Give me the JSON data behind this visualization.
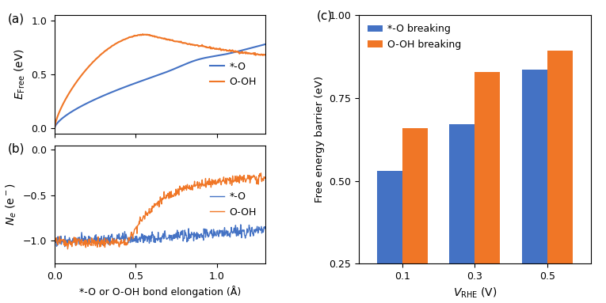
{
  "blue_color": "#4472C4",
  "orange_color": "#F07626",
  "panel_a": {
    "title": "(a)",
    "xlabel": "*-O or O-OH bond elongation (Å)",
    "ylabel": "$E_{\\mathrm{Free}}$ (eV)",
    "xlim": [
      0.0,
      1.3
    ],
    "ylim": [
      -0.05,
      1.05
    ],
    "yticks": [
      0.0,
      0.5,
      1.0
    ],
    "xticks": [
      0.0,
      0.5,
      1.0
    ],
    "legend_labels": [
      "*-O",
      "O-OH"
    ]
  },
  "panel_b": {
    "title": "(b)",
    "xlabel": "*-O or O-OH bond elongation (Å)",
    "ylabel": "$N_e$ (e$^-$)",
    "xlim": [
      0.0,
      1.3
    ],
    "ylim": [
      -1.25,
      0.05
    ],
    "yticks": [
      0.0,
      -0.5,
      -1.0
    ],
    "xticks": [
      0.0,
      0.5,
      1.0
    ],
    "legend_labels": [
      "*-O",
      "O-OH"
    ]
  },
  "panel_c": {
    "title": "(c)",
    "xlabel": "$V_{\\mathrm{RHE}}$ (V)",
    "ylabel": "Free energy barrier (eV)",
    "categories": [
      "0.1",
      "0.3",
      "0.5"
    ],
    "blue_values": [
      0.53,
      0.67,
      0.835
    ],
    "orange_values": [
      0.66,
      0.828,
      0.893
    ],
    "ylim": [
      0.25,
      1.0
    ],
    "yticks": [
      0.25,
      0.5,
      0.75,
      1.0
    ],
    "legend_labels": [
      "*-O breaking",
      "O-OH breaking"
    ]
  }
}
